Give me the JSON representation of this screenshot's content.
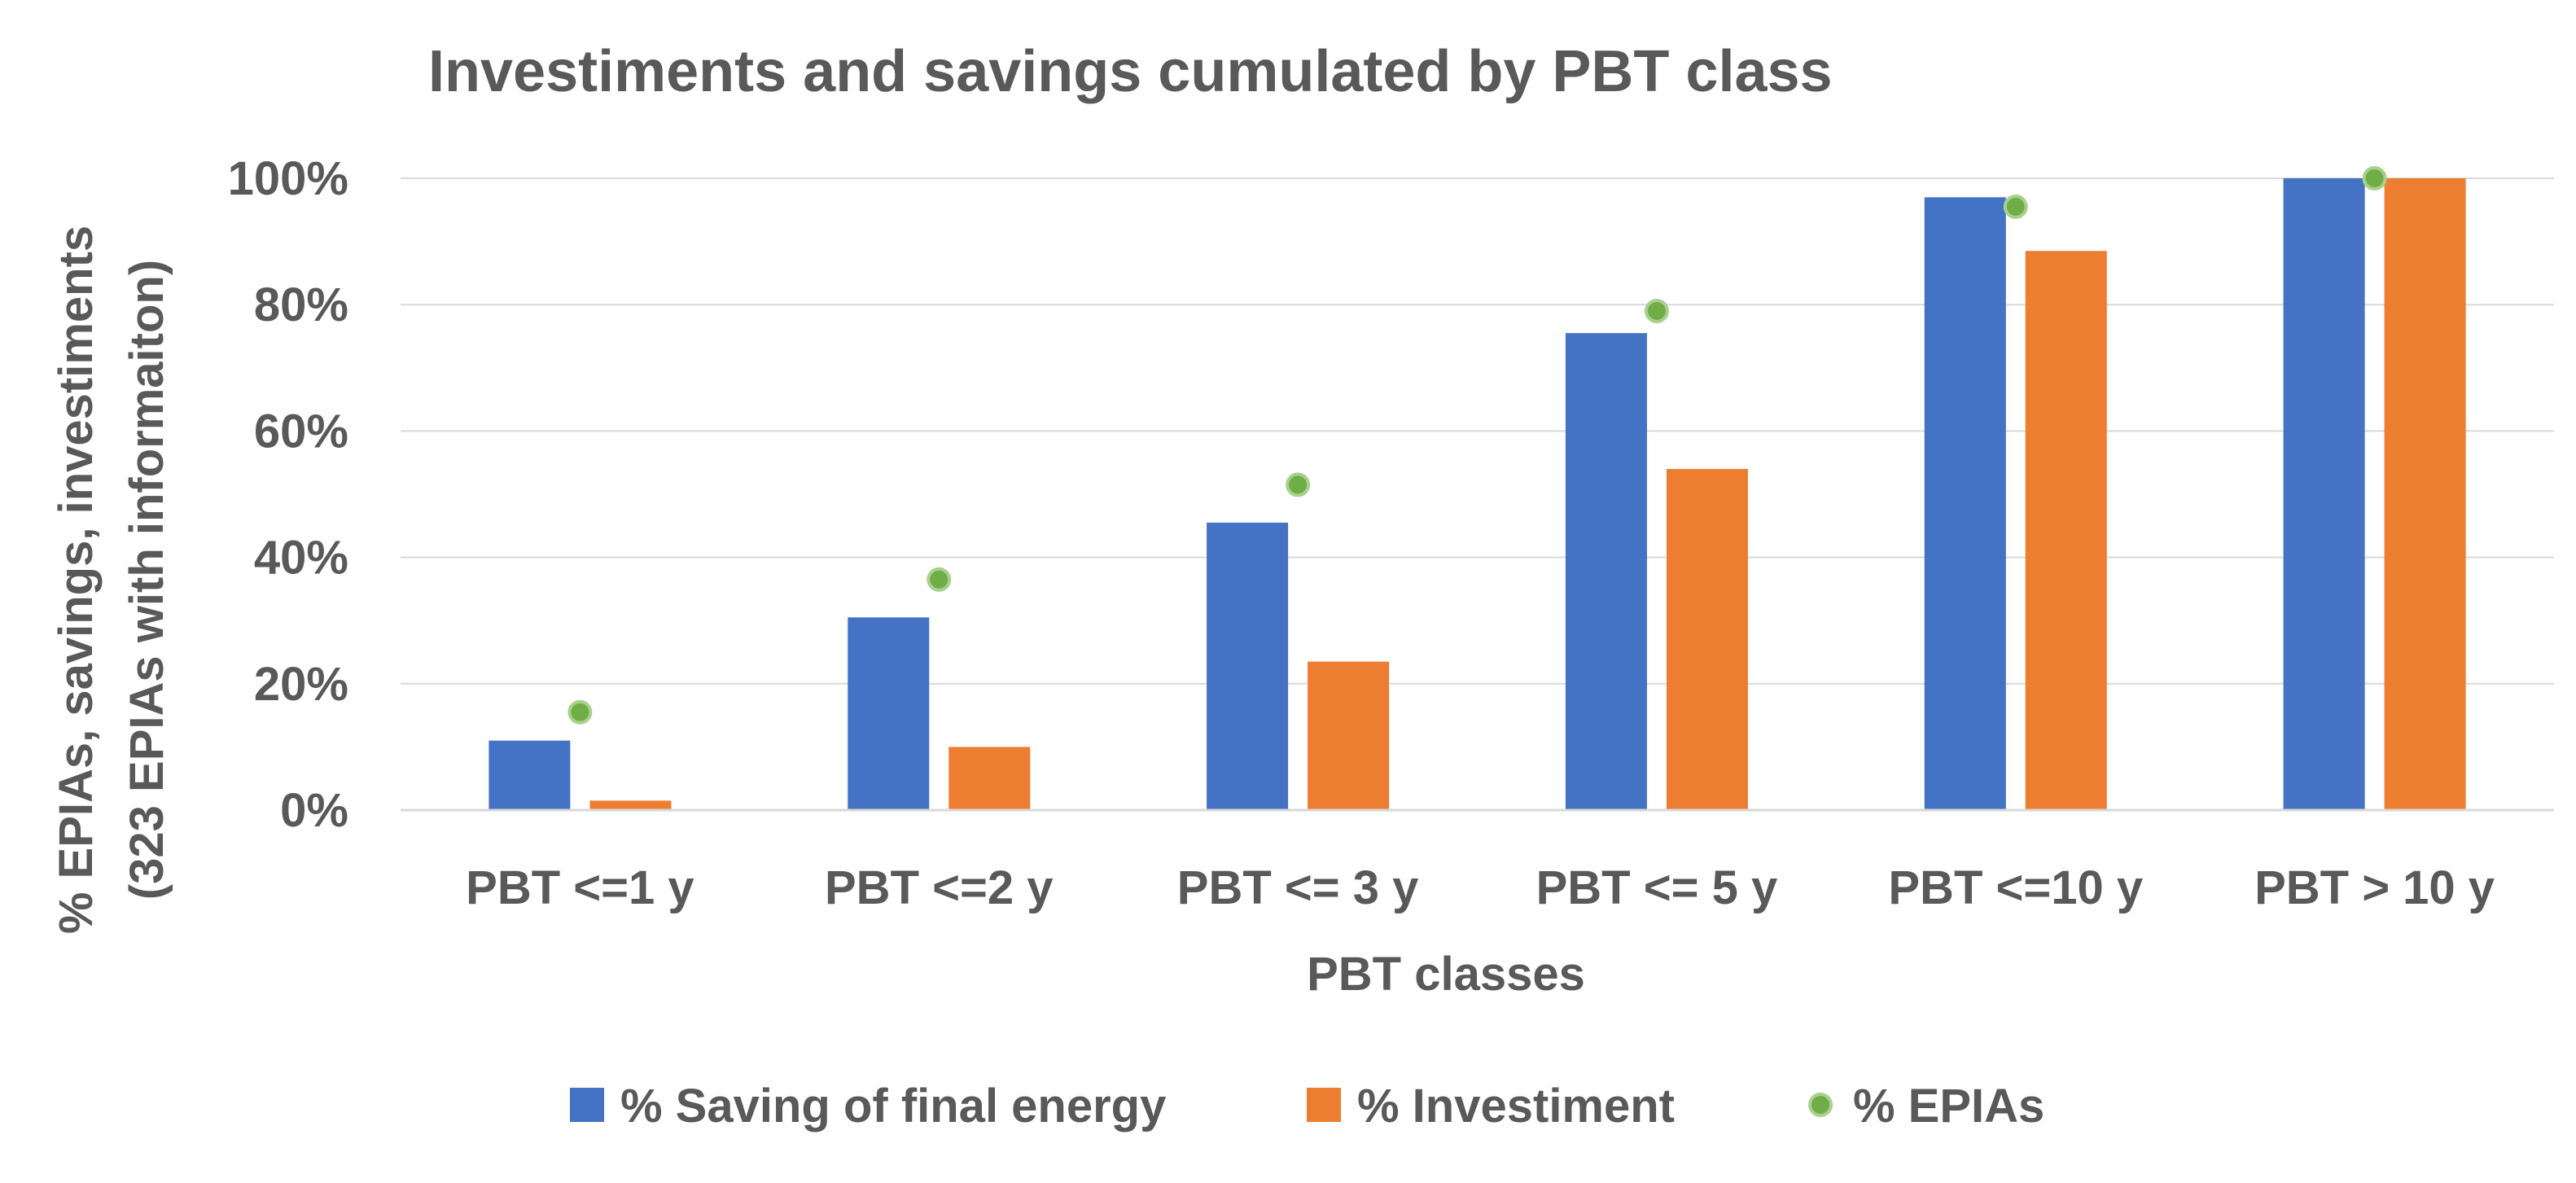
{
  "chart_data": {
    "type": "bar",
    "title": "Investiments and savings cumulated by PBT class",
    "xlabel": "PBT classes",
    "ylabel_line1": "% EPIAs, savings, investiments",
    "ylabel_line2": "(323 EPIAs with informaiton)",
    "categories": [
      "PBT <=1 y",
      "PBT <=2 y",
      "PBT <= 3 y",
      "PBT <= 5 y",
      "PBT <=10 y",
      "PBT > 10 y"
    ],
    "ylim": [
      0,
      100
    ],
    "yticks": [
      "0%",
      "20%",
      "40%",
      "60%",
      "80%",
      "100%"
    ],
    "ytick_values": [
      0,
      20,
      40,
      60,
      80,
      100
    ],
    "grid": true,
    "legend_position": "bottom",
    "series": [
      {
        "name": "% Saving of final energy",
        "kind": "bar",
        "color": "#4472C4",
        "values": [
          11,
          30.5,
          45.5,
          75.5,
          97,
          100
        ]
      },
      {
        "name": "% Investiment",
        "kind": "bar",
        "color": "#ED7D31",
        "values": [
          1.5,
          10,
          23.5,
          54,
          88.5,
          100
        ]
      },
      {
        "name": "% EPIAs",
        "kind": "marker",
        "color": "#70AD47",
        "values": [
          15.5,
          36.5,
          51.5,
          79,
          95.5,
          100
        ]
      }
    ]
  }
}
